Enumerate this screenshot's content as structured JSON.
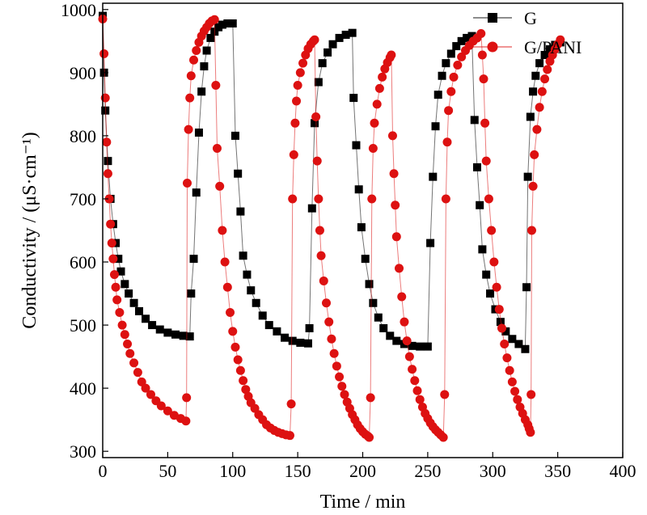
{
  "chart_data": {
    "type": "scatter",
    "xlabel": "Time / min",
    "ylabel": "Conductivity / (μS·cm⁻¹)",
    "xlim": [
      0,
      400
    ],
    "ylim": [
      290,
      1010
    ],
    "xticks": [
      "0",
      "50",
      "100",
      "150",
      "200",
      "250",
      "300",
      "350",
      "400"
    ],
    "yticks": [
      "300",
      "400",
      "500",
      "600",
      "700",
      "800",
      "900",
      "1000"
    ],
    "grid": false,
    "legend_position": "top-right",
    "series": [
      {
        "name": "G",
        "color": "#000000",
        "marker": "square",
        "points": [
          [
            0,
            990
          ],
          [
            1,
            900
          ],
          [
            2,
            840
          ],
          [
            4,
            760
          ],
          [
            6,
            700
          ],
          [
            8,
            660
          ],
          [
            10,
            630
          ],
          [
            12,
            605
          ],
          [
            14,
            585
          ],
          [
            17,
            565
          ],
          [
            20,
            550
          ],
          [
            24,
            535
          ],
          [
            28,
            522
          ],
          [
            33,
            510
          ],
          [
            38,
            500
          ],
          [
            44,
            493
          ],
          [
            50,
            488
          ],
          [
            56,
            485
          ],
          [
            62,
            483
          ],
          [
            67,
            482
          ],
          [
            68,
            550
          ],
          [
            70,
            605
          ],
          [
            72,
            710
          ],
          [
            74,
            805
          ],
          [
            76,
            870
          ],
          [
            78,
            910
          ],
          [
            80,
            935
          ],
          [
            83,
            955
          ],
          [
            86,
            965
          ],
          [
            89,
            972
          ],
          [
            92,
            976
          ],
          [
            96,
            978
          ],
          [
            100,
            978
          ],
          [
            102,
            800
          ],
          [
            104,
            740
          ],
          [
            106,
            680
          ],
          [
            108,
            610
          ],
          [
            111,
            580
          ],
          [
            114,
            555
          ],
          [
            118,
            535
          ],
          [
            123,
            515
          ],
          [
            128,
            500
          ],
          [
            134,
            490
          ],
          [
            140,
            480
          ],
          [
            146,
            475
          ],
          [
            152,
            472
          ],
          [
            158,
            471
          ],
          [
            159,
            495
          ],
          [
            161,
            685
          ],
          [
            163,
            820
          ],
          [
            166,
            885
          ],
          [
            169,
            915
          ],
          [
            173,
            932
          ],
          [
            177,
            945
          ],
          [
            182,
            955
          ],
          [
            187,
            960
          ],
          [
            192,
            963
          ],
          [
            193,
            860
          ],
          [
            195,
            785
          ],
          [
            197,
            715
          ],
          [
            199,
            655
          ],
          [
            202,
            605
          ],
          [
            205,
            565
          ],
          [
            208,
            535
          ],
          [
            212,
            512
          ],
          [
            216,
            495
          ],
          [
            221,
            483
          ],
          [
            226,
            475
          ],
          [
            232,
            470
          ],
          [
            238,
            467
          ],
          [
            244,
            466
          ],
          [
            250,
            466
          ],
          [
            252,
            630
          ],
          [
            254,
            735
          ],
          [
            256,
            815
          ],
          [
            258,
            865
          ],
          [
            261,
            895
          ],
          [
            264,
            915
          ],
          [
            268,
            930
          ],
          [
            272,
            942
          ],
          [
            276,
            950
          ],
          [
            280,
            955
          ],
          [
            284,
            958
          ],
          [
            286,
            825
          ],
          [
            288,
            750
          ],
          [
            290,
            690
          ],
          [
            292,
            620
          ],
          [
            295,
            580
          ],
          [
            298,
            550
          ],
          [
            302,
            525
          ],
          [
            306,
            505
          ],
          [
            310,
            490
          ],
          [
            315,
            478
          ],
          [
            320,
            470
          ],
          [
            325,
            462
          ],
          [
            326,
            560
          ],
          [
            327,
            735
          ],
          [
            329,
            830
          ],
          [
            331,
            870
          ],
          [
            333,
            895
          ],
          [
            336,
            915
          ],
          [
            340,
            928
          ],
          [
            344,
            937
          ],
          [
            348,
            944
          ],
          [
            352,
            948
          ]
        ]
      },
      {
        "name": "G/PANI",
        "color": "#dd1111",
        "marker": "circle",
        "points": [
          [
            0,
            985
          ],
          [
            1,
            930
          ],
          [
            2,
            860
          ],
          [
            3,
            790
          ],
          [
            4,
            740
          ],
          [
            5,
            700
          ],
          [
            6,
            660
          ],
          [
            7,
            630
          ],
          [
            8,
            605
          ],
          [
            9,
            580
          ],
          [
            10,
            560
          ],
          [
            11,
            540
          ],
          [
            13,
            520
          ],
          [
            15,
            500
          ],
          [
            17,
            485
          ],
          [
            19,
            470
          ],
          [
            21,
            455
          ],
          [
            24,
            440
          ],
          [
            27,
            425
          ],
          [
            30,
            410
          ],
          [
            33,
            400
          ],
          [
            37,
            390
          ],
          [
            41,
            380
          ],
          [
            45,
            372
          ],
          [
            50,
            364
          ],
          [
            55,
            357
          ],
          [
            60,
            352
          ],
          [
            64,
            348
          ],
          [
            64.5,
            385
          ],
          [
            65,
            725
          ],
          [
            66,
            810
          ],
          [
            67,
            860
          ],
          [
            68,
            895
          ],
          [
            70,
            920
          ],
          [
            72,
            935
          ],
          [
            74,
            948
          ],
          [
            76,
            958
          ],
          [
            78,
            966
          ],
          [
            80,
            972
          ],
          [
            82,
            978
          ],
          [
            84,
            982
          ],
          [
            86,
            984
          ],
          [
            87,
            880
          ],
          [
            88,
            780
          ],
          [
            90,
            720
          ],
          [
            92,
            650
          ],
          [
            94,
            600
          ],
          [
            96,
            560
          ],
          [
            98,
            520
          ],
          [
            100,
            490
          ],
          [
            102,
            465
          ],
          [
            104,
            445
          ],
          [
            106,
            428
          ],
          [
            108,
            412
          ],
          [
            110,
            398
          ],
          [
            112,
            387
          ],
          [
            114,
            377
          ],
          [
            117,
            368
          ],
          [
            120,
            358
          ],
          [
            123,
            350
          ],
          [
            126,
            342
          ],
          [
            129,
            337
          ],
          [
            132,
            333
          ],
          [
            135,
            330
          ],
          [
            138,
            328
          ],
          [
            141,
            326
          ],
          [
            144,
            325
          ],
          [
            145,
            375
          ],
          [
            146,
            700
          ],
          [
            147,
            770
          ],
          [
            148,
            820
          ],
          [
            149,
            855
          ],
          [
            150,
            880
          ],
          [
            152,
            900
          ],
          [
            154,
            915
          ],
          [
            156,
            928
          ],
          [
            158,
            938
          ],
          [
            160,
            945
          ],
          [
            162,
            950
          ],
          [
            163,
            952
          ],
          [
            164,
            830
          ],
          [
            165,
            760
          ],
          [
            166,
            700
          ],
          [
            167,
            650
          ],
          [
            168,
            610
          ],
          [
            170,
            570
          ],
          [
            172,
            535
          ],
          [
            174,
            505
          ],
          [
            176,
            478
          ],
          [
            178,
            455
          ],
          [
            180,
            435
          ],
          [
            182,
            418
          ],
          [
            184,
            403
          ],
          [
            186,
            390
          ],
          [
            188,
            378
          ],
          [
            190,
            368
          ],
          [
            192,
            358
          ],
          [
            194,
            350
          ],
          [
            196,
            342
          ],
          [
            198,
            336
          ],
          [
            200,
            331
          ],
          [
            202,
            327
          ],
          [
            204,
            324
          ],
          [
            205,
            322
          ],
          [
            206,
            385
          ],
          [
            207,
            700
          ],
          [
            208,
            780
          ],
          [
            209,
            820
          ],
          [
            211,
            850
          ],
          [
            213,
            875
          ],
          [
            215,
            893
          ],
          [
            217,
            906
          ],
          [
            219,
            916
          ],
          [
            221,
            924
          ],
          [
            222,
            928
          ],
          [
            223,
            800
          ],
          [
            224,
            740
          ],
          [
            225,
            690
          ],
          [
            226,
            640
          ],
          [
            228,
            590
          ],
          [
            230,
            545
          ],
          [
            232,
            505
          ],
          [
            234,
            475
          ],
          [
            236,
            450
          ],
          [
            238,
            430
          ],
          [
            240,
            412
          ],
          [
            242,
            396
          ],
          [
            244,
            382
          ],
          [
            246,
            370
          ],
          [
            248,
            360
          ],
          [
            250,
            352
          ],
          [
            252,
            345
          ],
          [
            254,
            339
          ],
          [
            256,
            334
          ],
          [
            258,
            330
          ],
          [
            260,
            326
          ],
          [
            262,
            322
          ],
          [
            263,
            390
          ],
          [
            264,
            700
          ],
          [
            265,
            790
          ],
          [
            266,
            840
          ],
          [
            268,
            870
          ],
          [
            270,
            893
          ],
          [
            273,
            912
          ],
          [
            276,
            925
          ],
          [
            279,
            935
          ],
          [
            282,
            943
          ],
          [
            285,
            950
          ],
          [
            288,
            955
          ],
          [
            291,
            962
          ],
          [
            292,
            928
          ],
          [
            293,
            890
          ],
          [
            294,
            820
          ],
          [
            295,
            760
          ],
          [
            297,
            700
          ],
          [
            299,
            650
          ],
          [
            301,
            600
          ],
          [
            303,
            560
          ],
          [
            305,
            525
          ],
          [
            307,
            495
          ],
          [
            309,
            470
          ],
          [
            311,
            448
          ],
          [
            313,
            428
          ],
          [
            315,
            410
          ],
          [
            317,
            395
          ],
          [
            319,
            382
          ],
          [
            321,
            370
          ],
          [
            323,
            360
          ],
          [
            325,
            350
          ],
          [
            327,
            342
          ],
          [
            328,
            336
          ],
          [
            329,
            330
          ],
          [
            329.5,
            390
          ],
          [
            330,
            650
          ],
          [
            331,
            720
          ],
          [
            332,
            770
          ],
          [
            334,
            810
          ],
          [
            336,
            845
          ],
          [
            338,
            870
          ],
          [
            340,
            890
          ],
          [
            342,
            905
          ],
          [
            344,
            918
          ],
          [
            346,
            928
          ],
          [
            348,
            937
          ],
          [
            350,
            945
          ],
          [
            352,
            952
          ]
        ]
      }
    ]
  }
}
